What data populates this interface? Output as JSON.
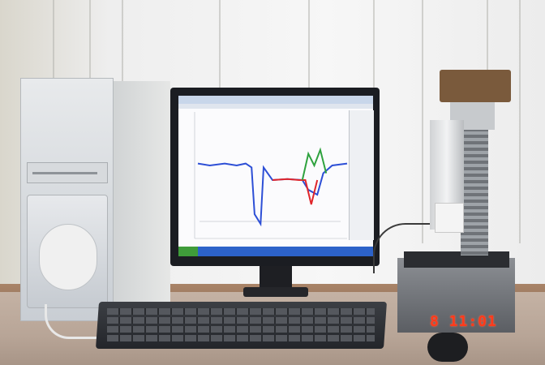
{
  "photo": {
    "subject": "desktop-computer-with-lab-instrument",
    "overlay_timestamp": "8 11:01",
    "colors": {
      "timestamp": "#ff3a1a",
      "screen_trace_blue": "#2d4fd6",
      "screen_trace_red": "#e0262b",
      "screen_trace_green": "#2fa23f",
      "taskbar": "#2c62c9"
    },
    "screen_plot": {
      "series_blue": [
        [
          0,
          0.72
        ],
        [
          0.08,
          0.7
        ],
        [
          0.18,
          0.72
        ],
        [
          0.26,
          0.7
        ],
        [
          0.32,
          0.72
        ],
        [
          0.36,
          0.68
        ],
        [
          0.38,
          0.2
        ],
        [
          0.42,
          0.1
        ],
        [
          0.44,
          0.68
        ],
        [
          0.5,
          0.55
        ],
        [
          0.6,
          0.56
        ],
        [
          0.7,
          0.55
        ],
        [
          0.74,
          0.45
        ],
        [
          0.8,
          0.4
        ],
        [
          0.84,
          0.62
        ],
        [
          0.9,
          0.7
        ],
        [
          1.0,
          0.72
        ]
      ],
      "series_red": [
        [
          0.5,
          0.55
        ],
        [
          0.6,
          0.56
        ],
        [
          0.68,
          0.55
        ],
        [
          0.72,
          0.55
        ],
        [
          0.76,
          0.3
        ],
        [
          0.8,
          0.55
        ]
      ],
      "series_green": [
        [
          0.7,
          0.55
        ],
        [
          0.74,
          0.82
        ],
        [
          0.78,
          0.7
        ],
        [
          0.82,
          0.86
        ],
        [
          0.86,
          0.62
        ]
      ]
    }
  }
}
